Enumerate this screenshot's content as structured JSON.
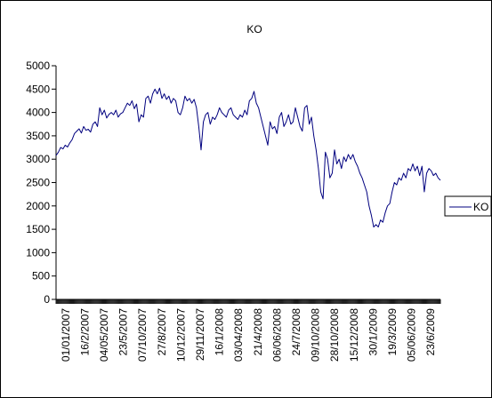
{
  "chart_data": {
    "type": "line",
    "title": "KO",
    "xlabel": "",
    "ylabel": "",
    "ylim": [
      0,
      5000
    ],
    "yticks": [
      0,
      500,
      1000,
      1500,
      2000,
      2500,
      3000,
      3500,
      4000,
      4500,
      5000
    ],
    "xtick_labels": [
      "01/01/2007",
      "16/2/2007",
      "04/05/2007",
      "23/5/2007",
      "07/10/2007",
      "27/8/2007",
      "10/12/2007",
      "29/11/2007",
      "16/1/2008",
      "03/04/2008",
      "21/4/2008",
      "06/06/2008",
      "24/7/2008",
      "09/10/2008",
      "28/10/2008",
      "15/12/2008",
      "30/1/2009",
      "19/3/2009",
      "05/06/2009",
      "23/6/2009"
    ],
    "legend": {
      "position": "right",
      "entries": [
        "KO"
      ]
    },
    "grid": false,
    "series": [
      {
        "name": "KO",
        "color": "#00007f",
        "values": [
          3080,
          3150,
          3250,
          3220,
          3300,
          3260,
          3350,
          3420,
          3550,
          3600,
          3650,
          3560,
          3700,
          3620,
          3640,
          3580,
          3750,
          3800,
          3700,
          4100,
          3950,
          4050,
          3880,
          3960,
          4000,
          3950,
          4050,
          3900,
          3970,
          4000,
          4100,
          4200,
          4150,
          4250,
          4080,
          4180,
          3800,
          3950,
          3900,
          4300,
          4350,
          4200,
          4400,
          4500,
          4400,
          4520,
          4300,
          4400,
          4280,
          4350,
          4200,
          4300,
          4250,
          4000,
          3950,
          4100,
          4350,
          4250,
          4300,
          4200,
          4280,
          4100,
          3700,
          3200,
          3800,
          3950,
          4000,
          3750,
          3900,
          3850,
          3950,
          4100,
          4000,
          3950,
          3900,
          4050,
          4100,
          3950,
          3900,
          3850,
          3950,
          3900,
          4050,
          3950,
          4250,
          4300,
          4450,
          4200,
          4100,
          3900,
          3700,
          3500,
          3300,
          3800,
          3650,
          3700,
          3550,
          3900,
          4000,
          3700,
          3800,
          3950,
          3750,
          3800,
          4100,
          3900,
          3700,
          3600,
          4100,
          4150,
          3750,
          3900,
          3500,
          3200,
          2800,
          2300,
          2150,
          3150,
          3000,
          2600,
          2700,
          3200,
          2900,
          3000,
          2800,
          3050,
          2950,
          3100,
          3000,
          3100,
          2950,
          2850,
          2700,
          2600,
          2450,
          2300,
          2000,
          1800,
          1550,
          1600,
          1550,
          1700,
          1650,
          1850,
          2000,
          2050,
          2300,
          2500,
          2450,
          2600,
          2550,
          2700,
          2600,
          2800,
          2750,
          2900,
          2750,
          2850,
          2650,
          2850,
          2300,
          2700,
          2800,
          2750,
          2650,
          2700,
          2600,
          2550
        ]
      }
    ]
  }
}
